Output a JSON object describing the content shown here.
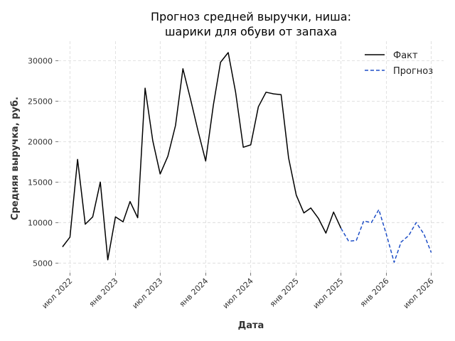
{
  "chart_data": {
    "type": "line",
    "title_lines": [
      "Прогноз средней выручки, ниша:",
      "шарики для обуви от запаха"
    ],
    "xlabel": "Дата",
    "ylabel": "Средняя выручка, руб.",
    "x_ticks": [
      {
        "date": "2022-07-01",
        "label": "июл 2022"
      },
      {
        "date": "2023-01-01",
        "label": "янв 2023"
      },
      {
        "date": "2023-07-01",
        "label": "июл 2023"
      },
      {
        "date": "2024-01-01",
        "label": "янв 2024"
      },
      {
        "date": "2024-07-01",
        "label": "июл 2024"
      },
      {
        "date": "2025-01-01",
        "label": "янв 2025"
      },
      {
        "date": "2025-07-01",
        "label": "июл 2025"
      },
      {
        "date": "2026-01-01",
        "label": "янв 2026"
      },
      {
        "date": "2026-07-01",
        "label": "июл 2026"
      }
    ],
    "y_ticks": [
      5000,
      10000,
      15000,
      20000,
      25000,
      30000
    ],
    "xlim": [
      "2022-05-15",
      "2026-08-20"
    ],
    "ylim": [
      3800,
      32400
    ],
    "grid": true,
    "legend_position": "top-right",
    "series": [
      {
        "name": "Факт",
        "color": "#000000",
        "style": "solid",
        "points": [
          [
            "2022-06-01",
            7000
          ],
          [
            "2022-07-01",
            8200
          ],
          [
            "2022-08-01",
            17800
          ],
          [
            "2022-09-01",
            9800
          ],
          [
            "2022-10-01",
            10700
          ],
          [
            "2022-11-01",
            15000
          ],
          [
            "2022-12-01",
            5400
          ],
          [
            "2023-01-01",
            10700
          ],
          [
            "2023-02-01",
            10100
          ],
          [
            "2023-03-01",
            12600
          ],
          [
            "2023-04-01",
            10600
          ],
          [
            "2023-05-01",
            26600
          ],
          [
            "2023-06-01",
            20100
          ],
          [
            "2023-07-01",
            16000
          ],
          [
            "2023-08-01",
            18200
          ],
          [
            "2023-09-01",
            22000
          ],
          [
            "2023-10-01",
            29000
          ],
          [
            "2023-11-01",
            25200
          ],
          [
            "2023-12-01",
            21300
          ],
          [
            "2024-01-01",
            17600
          ],
          [
            "2024-02-01",
            24500
          ],
          [
            "2024-03-01",
            29800
          ],
          [
            "2024-04-01",
            31000
          ],
          [
            "2024-05-01",
            26100
          ],
          [
            "2024-06-01",
            19300
          ],
          [
            "2024-07-01",
            19600
          ],
          [
            "2024-08-01",
            24300
          ],
          [
            "2024-09-01",
            26100
          ],
          [
            "2024-10-01",
            25900
          ],
          [
            "2024-11-01",
            25800
          ],
          [
            "2024-12-01",
            18000
          ],
          [
            "2025-01-01",
            13400
          ],
          [
            "2025-02-01",
            11200
          ],
          [
            "2025-03-01",
            11800
          ],
          [
            "2025-04-01",
            10500
          ],
          [
            "2025-05-01",
            8700
          ],
          [
            "2025-06-01",
            11300
          ],
          [
            "2025-07-01",
            9300
          ]
        ]
      },
      {
        "name": "Прогноз",
        "color": "#1f4fc7",
        "style": "dashed",
        "points": [
          [
            "2025-07-01",
            9300
          ],
          [
            "2025-08-01",
            7700
          ],
          [
            "2025-09-01",
            7800
          ],
          [
            "2025-10-01",
            10200
          ],
          [
            "2025-11-01",
            10000
          ],
          [
            "2025-12-01",
            11600
          ],
          [
            "2026-01-01",
            8500
          ],
          [
            "2026-02-01",
            5100
          ],
          [
            "2026-03-01",
            7600
          ],
          [
            "2026-04-01",
            8400
          ],
          [
            "2026-05-01",
            10000
          ],
          [
            "2026-06-01",
            8600
          ],
          [
            "2026-07-01",
            6300
          ]
        ]
      }
    ]
  }
}
